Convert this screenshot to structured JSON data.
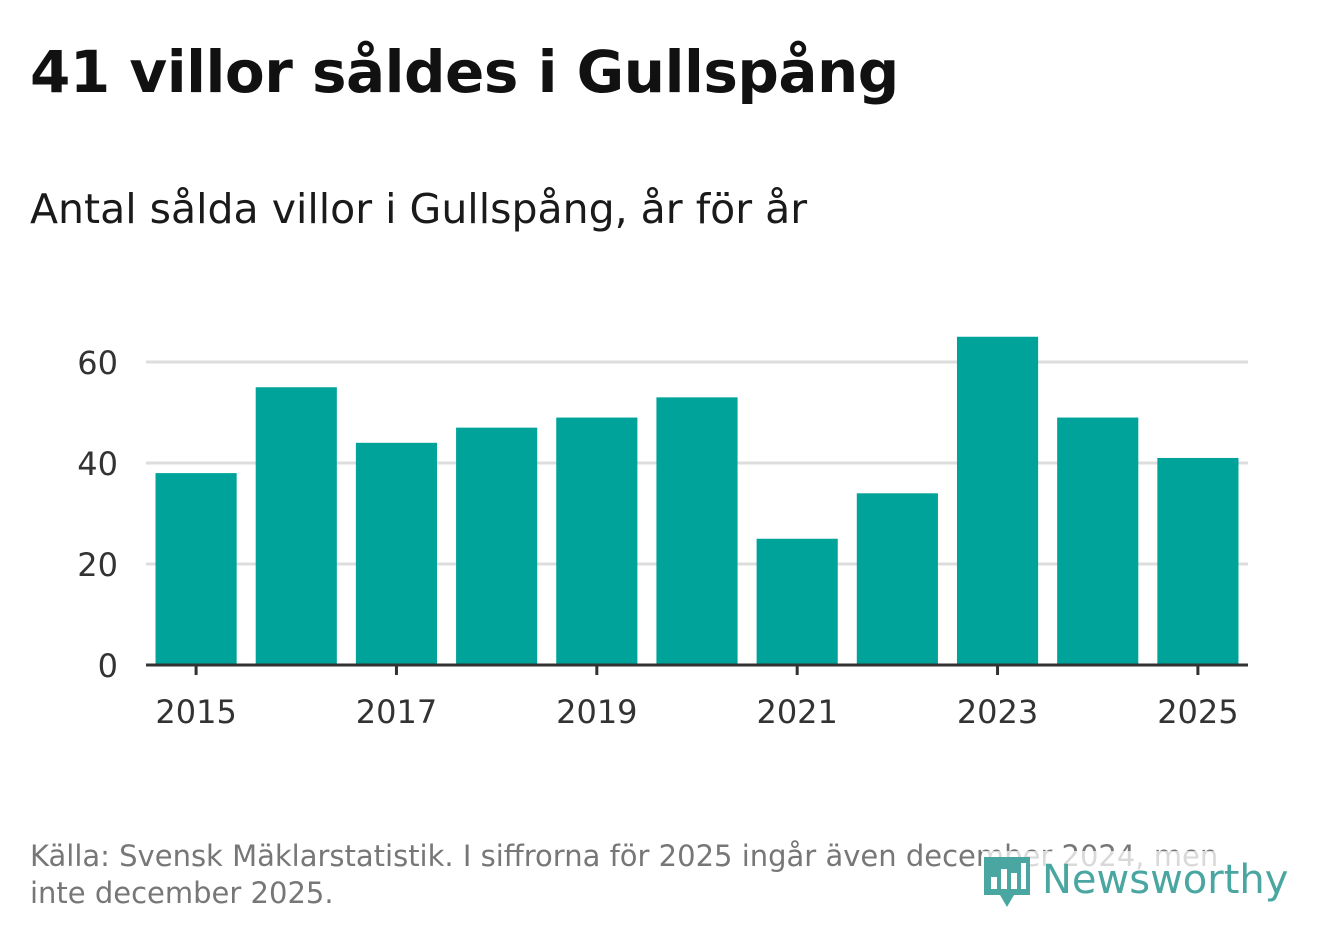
{
  "title": "41 villor såldes i Gullspång",
  "subtitle": "Antal sålda villor i Gullspång, år för år",
  "source": "Källa: Svensk Mäklarstatistik. I siffrorna för 2025 ingår även december 2024, men inte december 2025.",
  "logo": {
    "text": "Newsworthy",
    "icon": "newsworthy-logo-icon"
  },
  "colors": {
    "bar": "#00a39a",
    "grid": "#dddddd",
    "axis": "#333333",
    "brand": "#4aa6a0"
  },
  "chart_data": {
    "type": "bar",
    "title": "Antal sålda villor i Gullspång, år för år",
    "xlabel": "",
    "ylabel": "",
    "categories": [
      "2015",
      "2016",
      "2017",
      "2018",
      "2019",
      "2020",
      "2021",
      "2022",
      "2023",
      "2024",
      "2025"
    ],
    "values": [
      38,
      55,
      44,
      47,
      49,
      53,
      25,
      34,
      65,
      49,
      41
    ],
    "ylim": [
      0,
      70
    ],
    "yticks": [
      0,
      20,
      40,
      60
    ],
    "xtick_labels": [
      "2015",
      "2017",
      "2019",
      "2021",
      "2023",
      "2025"
    ],
    "grid": true
  }
}
